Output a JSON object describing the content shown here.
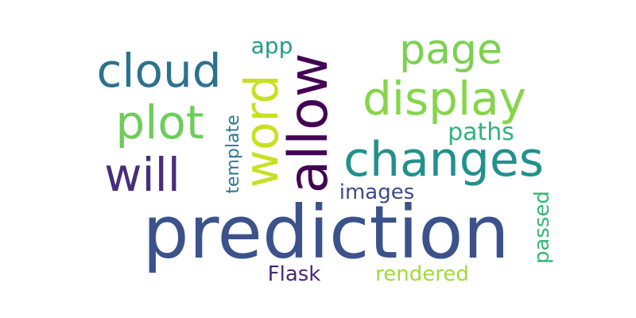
{
  "words": [
    {
      "id": "prediction",
      "text": "prediction",
      "color": "#3b528b"
    },
    {
      "id": "allow",
      "text": "allow",
      "color": "#440154"
    },
    {
      "id": "word",
      "text": "word",
      "color": "#c8e020"
    },
    {
      "id": "changes",
      "text": "changes",
      "color": "#21918c"
    },
    {
      "id": "cloud",
      "text": "cloud",
      "color": "#2c728e"
    },
    {
      "id": "plot",
      "text": "plot",
      "color": "#6ccd5a"
    },
    {
      "id": "will",
      "text": "will",
      "color": "#472d7b"
    },
    {
      "id": "display",
      "text": "display",
      "color": "#86d549"
    },
    {
      "id": "page",
      "text": "page",
      "color": "#7ad151"
    },
    {
      "id": "template",
      "text": "template",
      "color": "#2a788e"
    },
    {
      "id": "paths",
      "text": "paths",
      "color": "#2fb47c"
    },
    {
      "id": "images",
      "text": "images",
      "color": "#3e4a89"
    },
    {
      "id": "app",
      "text": "app",
      "color": "#1f9e89"
    },
    {
      "id": "passed",
      "text": "passed",
      "color": "#35b779"
    },
    {
      "id": "Flask",
      "text": "Flask",
      "color": "#482878"
    },
    {
      "id": "rendered",
      "text": "rendered",
      "color": "#a0da39"
    }
  ]
}
